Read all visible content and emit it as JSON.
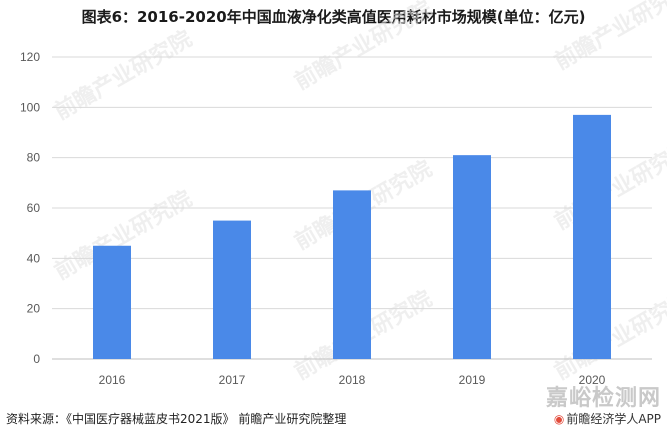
{
  "title": "图表6：2016-2020年中国血液净化类高值医用耗材市场规模(单位：亿元)",
  "source": "资料来源：《中国医疗器械蓝皮书2021版》 前瞻产业研究院整理",
  "brand": "前瞻经济学人APP",
  "side_logo": "嘉峪检测网",
  "watermark_text": "前瞻产业研究院",
  "colors": {
    "bar": "#4a89e8",
    "grid": "#d9d9d9",
    "tick": "#595959"
  },
  "chart_data": {
    "type": "bar",
    "title": "图表6：2016-2020年中国血液净化类高值医用耗材市场规模(单位：亿元)",
    "categories": [
      "2016",
      "2017",
      "2018",
      "2019",
      "2020"
    ],
    "values": [
      45,
      55,
      67,
      81,
      97
    ],
    "xlabel": "",
    "ylabel": "",
    "ylim": [
      0,
      120
    ],
    "yticks": [
      0,
      20,
      40,
      60,
      80,
      100,
      120
    ],
    "grid": true,
    "legend": "none"
  }
}
